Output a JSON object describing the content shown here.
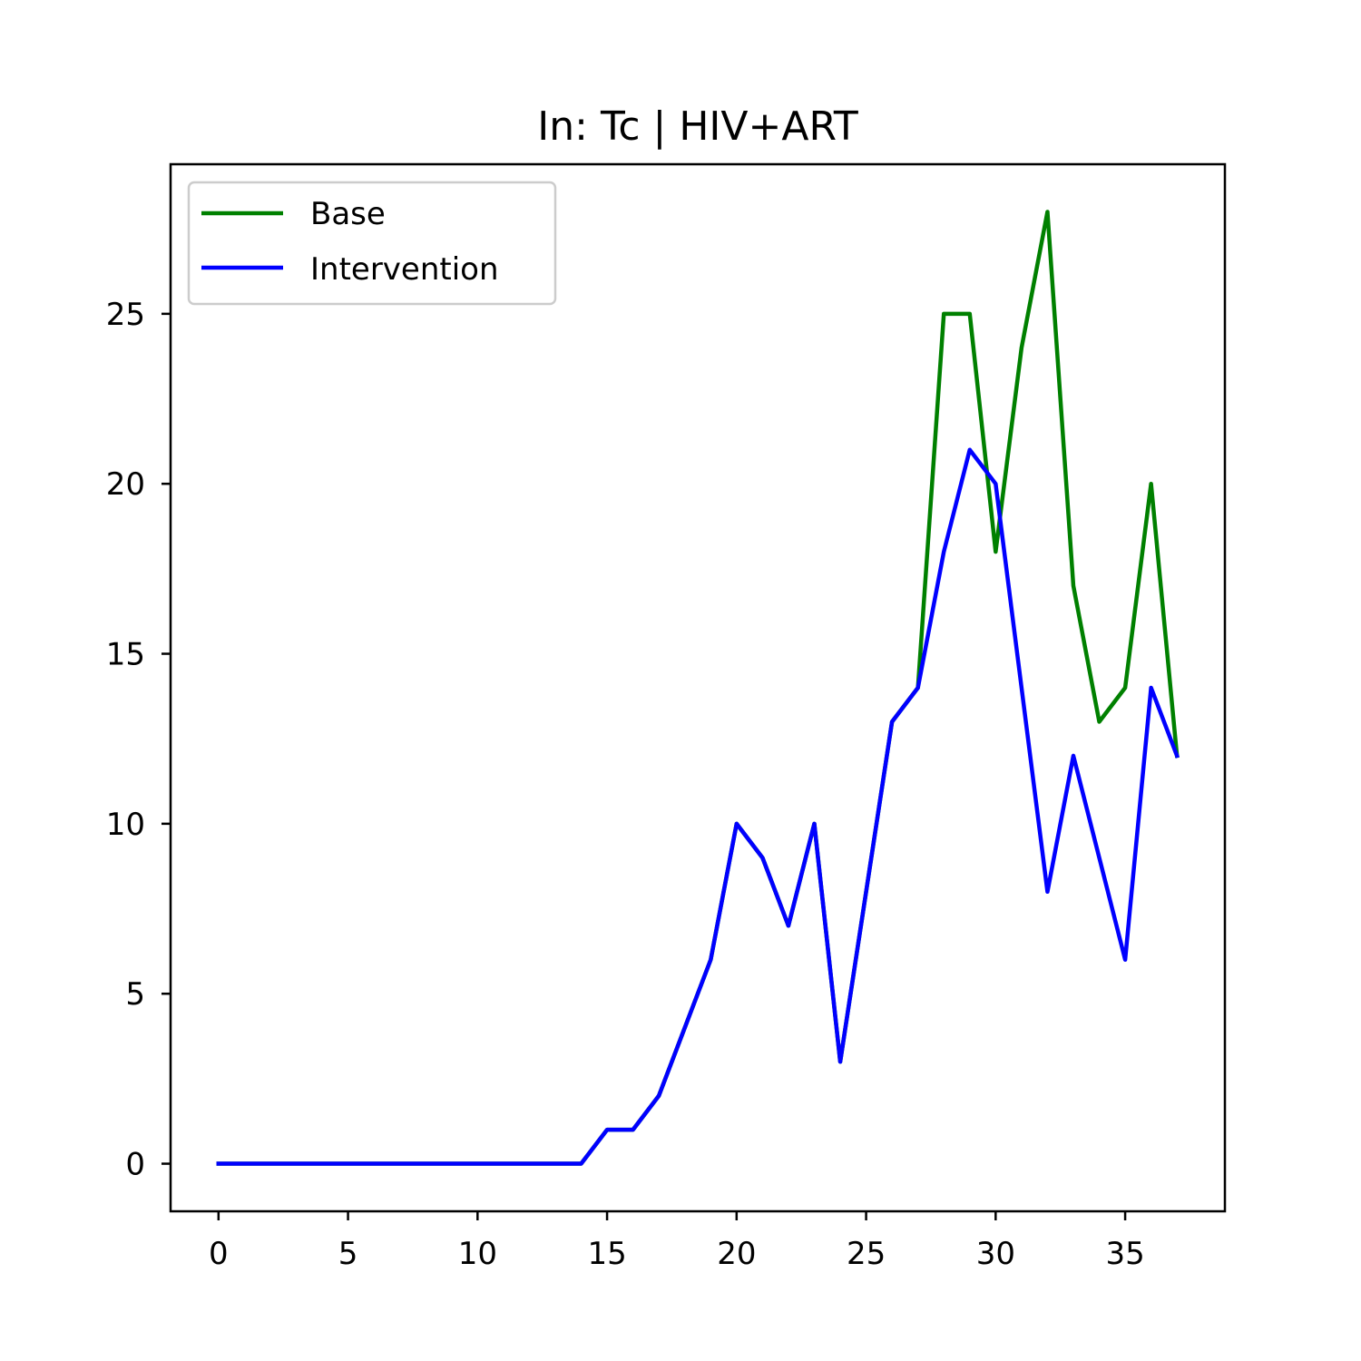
{
  "chart_data": {
    "type": "line",
    "title": "In: Tc | HIV+ART",
    "xlabel": "",
    "ylabel": "",
    "x": [
      0,
      1,
      2,
      3,
      4,
      5,
      6,
      7,
      8,
      9,
      10,
      11,
      12,
      13,
      14,
      15,
      16,
      17,
      18,
      19,
      20,
      21,
      22,
      23,
      24,
      25,
      26,
      27,
      28,
      29,
      30,
      31,
      32,
      33,
      34,
      35,
      36,
      37
    ],
    "xlim": [
      -1.85,
      38.85
    ],
    "ylim": [
      -1.4,
      29.4
    ],
    "xticks": [
      0,
      5,
      10,
      15,
      20,
      25,
      30,
      35
    ],
    "yticks": [
      0,
      5,
      10,
      15,
      20,
      25
    ],
    "grid": false,
    "legend": {
      "placement": "upper-left"
    },
    "series": [
      {
        "name": "Base",
        "color": "#008000",
        "values": [
          0,
          0,
          0,
          0,
          0,
          0,
          0,
          0,
          0,
          0,
          0,
          0,
          0,
          0,
          0,
          1,
          1,
          2,
          4,
          6,
          10,
          9,
          7,
          10,
          3,
          8,
          13,
          14,
          25,
          25,
          18,
          24,
          28,
          17,
          13,
          14,
          20,
          12
        ]
      },
      {
        "name": "Intervention",
        "color": "#0000ff",
        "values": [
          0,
          0,
          0,
          0,
          0,
          0,
          0,
          0,
          0,
          0,
          0,
          0,
          0,
          0,
          0,
          1,
          1,
          2,
          4,
          6,
          10,
          9,
          7,
          10,
          3,
          8,
          13,
          14,
          18,
          21,
          20,
          14,
          8,
          12,
          9,
          6,
          14,
          12
        ]
      }
    ]
  }
}
